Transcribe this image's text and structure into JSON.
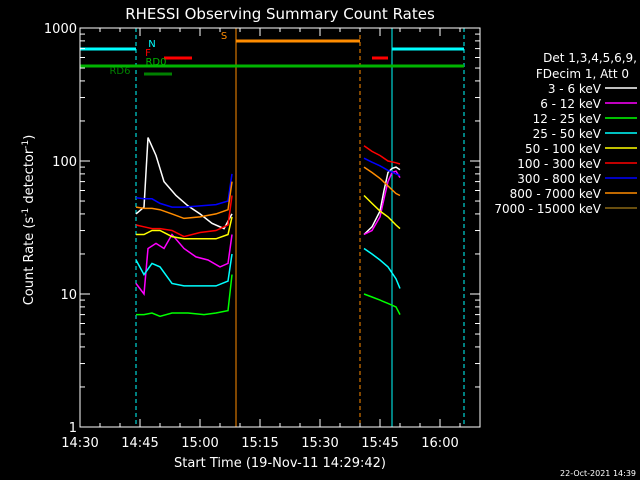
{
  "chart_data": {
    "type": "line",
    "title": "RHESSI Observing Summary Count Rates",
    "xlabel": "Start Time (19-Nov-11 14:29:42)",
    "ylabel": "Count Rate (s",
    "ylabel_sup1": "-1",
    "ylabel_mid": " detector",
    "ylabel_sup2": "-1",
    "ylabel_end": ")",
    "y_scale": "log",
    "ylim": [
      1,
      1000
    ],
    "xlim": [
      "14:30",
      "16:10"
    ],
    "x_ticks": [
      "14:30",
      "14:45",
      "15:00",
      "15:15",
      "15:30",
      "15:45",
      "16:00"
    ],
    "y_ticks": [
      "1",
      "10",
      "100",
      "1000"
    ],
    "legend_header": [
      "Det 1,3,4,5,6,9,",
      "FDecim 1, Att 0"
    ],
    "timestamp": "22-Oct-2021 14:39",
    "flags": [
      {
        "label": "N",
        "color": "#00ffff",
        "segments": [
          [
            "14:30",
            "14:44"
          ],
          [
            "15:48",
            "16:06"
          ]
        ]
      },
      {
        "label": "S",
        "color": "#ff8c00",
        "segments": [
          [
            "15:09",
            "15:40"
          ]
        ]
      },
      {
        "label": "F",
        "color": "#ff0000",
        "segments": [
          [
            "14:51",
            "14:58"
          ],
          [
            "15:43",
            "15:47"
          ]
        ]
      },
      {
        "label": "RD0",
        "color": "#00b400",
        "segments": [
          [
            "14:30",
            "16:06"
          ]
        ]
      },
      {
        "label": "RD6",
        "color": "#008000",
        "segments": [
          [
            "14:46",
            "14:53"
          ]
        ]
      }
    ],
    "series": [
      {
        "name": "3 - 6 keV",
        "color": "#ffffff",
        "segment1": [
          [
            "14:44",
            40
          ],
          [
            "14:46",
            45
          ],
          [
            "14:47",
            150
          ],
          [
            "14:49",
            110
          ],
          [
            "14:51",
            70
          ],
          [
            "14:54",
            55
          ],
          [
            "14:57",
            46
          ],
          [
            "15:00",
            40
          ],
          [
            "15:03",
            34
          ],
          [
            "15:06",
            31
          ],
          [
            "15:08",
            40
          ]
        ],
        "segment2": [
          [
            "15:41",
            28
          ],
          [
            "15:43",
            32
          ],
          [
            "15:45",
            42
          ],
          [
            "15:46",
            60
          ],
          [
            "15:47",
            82
          ],
          [
            "15:48",
            88
          ],
          [
            "15:49",
            90
          ],
          [
            "15:50",
            86
          ]
        ]
      },
      {
        "name": "6 - 12 keV",
        "color": "#ff00ff",
        "segment1": [
          [
            "14:44",
            12
          ],
          [
            "14:46",
            10
          ],
          [
            "14:47",
            22
          ],
          [
            "14:49",
            24
          ],
          [
            "14:51",
            22
          ],
          [
            "14:53",
            28
          ],
          [
            "14:56",
            22
          ],
          [
            "14:59",
            19
          ],
          [
            "15:02",
            18
          ],
          [
            "15:05",
            16
          ],
          [
            "15:07",
            17
          ],
          [
            "15:08",
            28
          ]
        ],
        "segment2": [
          [
            "15:41",
            28
          ],
          [
            "15:43",
            30
          ],
          [
            "15:45",
            38
          ],
          [
            "15:46",
            52
          ],
          [
            "15:47",
            70
          ],
          [
            "15:48",
            82
          ],
          [
            "15:49",
            84
          ],
          [
            "15:50",
            75
          ]
        ]
      },
      {
        "name": "12 - 25 keV",
        "color": "#00ff00",
        "segment1": [
          [
            "14:44",
            7
          ],
          [
            "14:46",
            7
          ],
          [
            "14:48",
            7.2
          ],
          [
            "14:50",
            6.8
          ],
          [
            "14:53",
            7.2
          ],
          [
            "14:57",
            7.2
          ],
          [
            "15:01",
            7
          ],
          [
            "15:04",
            7.2
          ],
          [
            "15:07",
            7.5
          ],
          [
            "15:08",
            14
          ]
        ],
        "segment2": [
          [
            "15:41",
            10
          ],
          [
            "15:43",
            9.5
          ],
          [
            "15:45",
            9
          ],
          [
            "15:47",
            8.5
          ],
          [
            "15:49",
            8
          ],
          [
            "15:50",
            7
          ]
        ]
      },
      {
        "name": "25 - 50 keV",
        "color": "#00ffff",
        "segment1": [
          [
            "14:44",
            18
          ],
          [
            "14:46",
            14
          ],
          [
            "14:48",
            17
          ],
          [
            "14:50",
            16
          ],
          [
            "14:53",
            12
          ],
          [
            "14:56",
            11.5
          ],
          [
            "15:00",
            11.5
          ],
          [
            "15:04",
            11.5
          ],
          [
            "15:07",
            12.5
          ],
          [
            "15:08",
            20
          ]
        ],
        "segment2": [
          [
            "15:41",
            22
          ],
          [
            "15:43",
            20
          ],
          [
            "15:45",
            18
          ],
          [
            "15:47",
            16
          ],
          [
            "15:49",
            13
          ],
          [
            "15:50",
            11
          ]
        ]
      },
      {
        "name": "50 - 100 keV",
        "color": "#ffff00",
        "segment1": [
          [
            "14:44",
            28
          ],
          [
            "14:46",
            28
          ],
          [
            "14:48",
            30
          ],
          [
            "14:50",
            30
          ],
          [
            "14:53",
            27
          ],
          [
            "14:56",
            26
          ],
          [
            "15:00",
            26
          ],
          [
            "15:04",
            26
          ],
          [
            "15:07",
            28
          ],
          [
            "15:08",
            38
          ]
        ],
        "segment2": [
          [
            "15:41",
            55
          ],
          [
            "15:43",
            48
          ],
          [
            "15:45",
            42
          ],
          [
            "15:47",
            38
          ],
          [
            "15:49",
            33
          ],
          [
            "15:50",
            31
          ]
        ]
      },
      {
        "name": "100 - 300 keV",
        "color": "#ff0000",
        "segment1": [
          [
            "14:44",
            33
          ],
          [
            "14:46",
            32
          ],
          [
            "14:48",
            31
          ],
          [
            "14:50",
            31
          ],
          [
            "14:53",
            30
          ],
          [
            "14:56",
            27
          ],
          [
            "15:00",
            29
          ],
          [
            "15:04",
            30
          ],
          [
            "15:07",
            33
          ],
          [
            "15:08",
            55
          ]
        ],
        "segment2": [
          [
            "15:41",
            130
          ],
          [
            "15:43",
            118
          ],
          [
            "15:45",
            110
          ],
          [
            "15:47",
            100
          ],
          [
            "15:49",
            97
          ],
          [
            "15:50",
            95
          ]
        ]
      },
      {
        "name": "300 - 800 keV",
        "color": "#0000ff",
        "segment1": [
          [
            "14:44",
            53
          ],
          [
            "14:46",
            52
          ],
          [
            "14:48",
            52
          ],
          [
            "14:50",
            48
          ],
          [
            "14:53",
            45
          ],
          [
            "14:56",
            45
          ],
          [
            "15:00",
            46
          ],
          [
            "15:04",
            47
          ],
          [
            "15:07",
            50
          ],
          [
            "15:08",
            80
          ]
        ],
        "segment2": [
          [
            "15:41",
            105
          ],
          [
            "15:43",
            98
          ],
          [
            "15:45",
            92
          ],
          [
            "15:47",
            85
          ],
          [
            "15:49",
            80
          ],
          [
            "15:50",
            78
          ]
        ]
      },
      {
        "name": "800 - 7000 keV",
        "color": "#ff8c00",
        "segment1": [
          [
            "14:44",
            45
          ],
          [
            "14:46",
            44
          ],
          [
            "14:48",
            44
          ],
          [
            "14:50",
            43
          ],
          [
            "14:53",
            40
          ],
          [
            "14:56",
            37
          ],
          [
            "15:00",
            38
          ],
          [
            "15:04",
            40
          ],
          [
            "15:07",
            43
          ],
          [
            "15:08",
            70
          ]
        ],
        "segment2": [
          [
            "15:41",
            90
          ],
          [
            "15:43",
            82
          ],
          [
            "15:45",
            74
          ],
          [
            "15:47",
            65
          ],
          [
            "15:49",
            57
          ],
          [
            "15:50",
            55
          ]
        ]
      },
      {
        "name": "7000 - 15000 keV",
        "color": "#8b6914",
        "segment1": [],
        "segment2": []
      }
    ]
  }
}
